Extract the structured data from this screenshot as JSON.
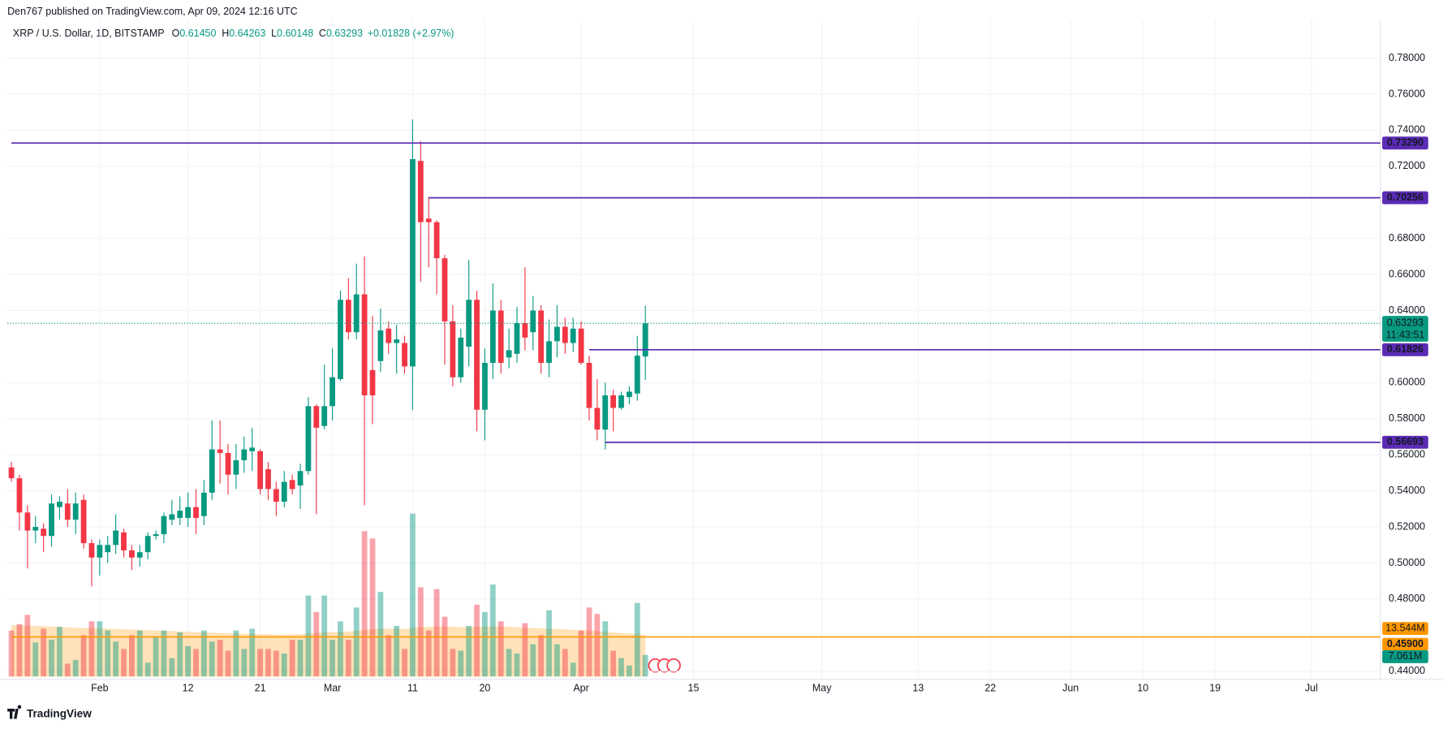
{
  "header": {
    "publisher": "Den767 published on TradingView.com, Apr 09, 2024 12:16 UTC",
    "footer": "TradingView"
  },
  "chart_data": {
    "type": "candlestick",
    "title": "XRP / U.S. Dollar, 1D, BITSTAMP",
    "legend": [
      {
        "key": "O",
        "value": "0.61450"
      },
      {
        "key": "H",
        "value": "0.64263"
      },
      {
        "key": "L",
        "value": "0.60148"
      },
      {
        "key": "C",
        "value": "0.63293"
      }
    ],
    "change": "+0.01828 (+2.97%)",
    "up_color": "#089981",
    "down_color": "#f23645",
    "open": [
      0.553,
      0.547,
      0.528,
      0.518,
      0.519,
      0.515,
      0.531,
      0.533,
      0.524,
      0.535,
      0.511,
      0.503,
      0.506,
      0.51,
      0.517,
      0.507,
      0.503,
      0.506,
      0.515,
      0.516,
      0.524,
      0.525,
      0.525,
      0.531,
      0.526,
      0.539,
      0.563,
      0.561,
      0.549,
      0.557,
      0.562,
      0.562,
      0.552,
      0.541,
      0.534,
      0.546,
      0.543,
      0.551,
      0.587,
      0.576,
      0.587,
      0.602,
      0.646,
      0.628,
      0.649,
      0.607,
      0.612,
      0.63,
      0.622,
      0.622,
      0.609,
      0.723,
      0.691,
      0.689,
      0.669,
      0.634,
      0.603,
      0.62,
      0.646,
      0.585,
      0.611,
      0.64,
      0.614,
      0.616,
      0.633,
      0.628,
      0.64,
      0.611,
      0.623,
      0.631,
      0.622,
      0.63,
      0.611,
      0.586,
      0.574,
      0.593,
      0.586,
      0.592,
      0.594,
      0.6145
    ],
    "high": [
      0.556,
      0.549,
      0.532,
      0.526,
      0.522,
      0.538,
      0.537,
      0.541,
      0.539,
      0.538,
      0.513,
      0.513,
      0.515,
      0.527,
      0.519,
      0.51,
      0.51,
      0.517,
      0.518,
      0.528,
      0.535,
      0.537,
      0.539,
      0.541,
      0.546,
      0.579,
      0.579,
      0.566,
      0.566,
      0.57,
      0.575,
      0.563,
      0.556,
      0.545,
      0.551,
      0.549,
      0.555,
      0.592,
      0.588,
      0.61,
      0.619,
      0.651,
      0.658,
      0.666,
      0.67,
      0.637,
      0.641,
      0.634,
      0.632,
      0.626,
      0.746,
      0.734,
      0.703,
      0.69,
      0.671,
      0.643,
      0.63,
      0.668,
      0.651,
      0.619,
      0.655,
      0.646,
      0.63,
      0.642,
      0.664,
      0.648,
      0.643,
      0.635,
      0.643,
      0.636,
      0.636,
      0.634,
      0.615,
      0.602,
      0.6,
      0.596,
      0.595,
      0.598,
      0.626,
      0.64263
    ],
    "low": [
      0.545,
      0.518,
      0.497,
      0.511,
      0.506,
      0.509,
      0.524,
      0.52,
      0.516,
      0.508,
      0.487,
      0.493,
      0.5,
      0.505,
      0.503,
      0.496,
      0.498,
      0.502,
      0.513,
      0.511,
      0.521,
      0.521,
      0.52,
      0.516,
      0.521,
      0.535,
      0.544,
      0.538,
      0.541,
      0.55,
      0.551,
      0.538,
      0.535,
      0.526,
      0.531,
      0.538,
      0.53,
      0.549,
      0.527,
      0.574,
      0.579,
      0.601,
      0.624,
      0.624,
      0.532,
      0.577,
      0.606,
      0.616,
      0.605,
      0.605,
      0.585,
      0.656,
      0.664,
      0.649,
      0.61,
      0.598,
      0.6,
      0.609,
      0.573,
      0.568,
      0.602,
      0.605,
      0.608,
      0.611,
      0.618,
      0.618,
      0.605,
      0.603,
      0.614,
      0.616,
      0.617,
      0.61,
      0.579,
      0.568,
      0.563,
      0.573,
      0.585,
      0.588,
      0.59,
      0.60148
    ],
    "close": [
      0.547,
      0.528,
      0.518,
      0.52,
      0.515,
      0.533,
      0.534,
      0.524,
      0.533,
      0.511,
      0.503,
      0.51,
      0.51,
      0.518,
      0.507,
      0.503,
      0.506,
      0.515,
      0.516,
      0.526,
      0.527,
      0.529,
      0.531,
      0.525,
      0.539,
      0.563,
      0.561,
      0.549,
      0.557,
      0.563,
      0.564,
      0.541,
      0.541,
      0.534,
      0.545,
      0.541,
      0.551,
      0.587,
      0.575,
      0.587,
      0.603,
      0.646,
      0.628,
      0.649,
      0.593,
      0.593,
      0.629,
      0.622,
      0.624,
      0.609,
      0.724,
      0.689,
      0.689,
      0.669,
      0.634,
      0.603,
      0.625,
      0.646,
      0.585,
      0.611,
      0.64,
      0.611,
      0.618,
      0.633,
      0.625,
      0.64,
      0.611,
      0.623,
      0.631,
      0.622,
      0.63,
      0.611,
      0.586,
      0.574,
      0.593,
      0.586,
      0.593,
      0.595,
      0.615,
      0.63293
    ],
    "volume": [
      15,
      17.1,
      20.1,
      11.1,
      15.6,
      12,
      16.2,
      4.2,
      5.4,
      13.5,
      18,
      18,
      15,
      11.4,
      9,
      13.5,
      15,
      4.5,
      12.9,
      15,
      6,
      14.4,
      9.9,
      9,
      15,
      11.4,
      12,
      8.4,
      15,
      9,
      15.6,
      9,
      9,
      8.4,
      7.5,
      12,
      12,
      26.4,
      21,
      26.4,
      12,
      18,
      12,
      22.5,
      47.4,
      45,
      27.6,
      13.5,
      16.5,
      9,
      53.1,
      29.1,
      15,
      28.5,
      19.5,
      9,
      8.4,
      16.5,
      23.4,
      21,
      30,
      18,
      9,
      7.5,
      17.4,
      10.5,
      13.5,
      21.6,
      10.5,
      9,
      4.5,
      15,
      22.5,
      20.4,
      18,
      8.4,
      6,
      3.6,
      24,
      7.061
    ],
    "volume_label": "7.061M",
    "volume_ma": [
      16.8,
      16.7,
      16.6,
      16.5,
      16.4,
      16.3,
      16.2,
      16.0,
      15.9,
      15.8,
      15.8,
      15.7,
      15.6,
      15.5,
      15.4,
      15.3,
      15.2,
      15.1,
      15.0,
      14.9,
      14.8,
      14.7,
      14.6,
      14.5,
      14.4,
      14.3,
      14.2,
      14.1,
      14.0,
      13.9,
      13.9,
      13.8,
      13.8,
      13.7,
      13.7,
      13.7,
      13.8,
      14.0,
      14.2,
      14.4,
      14.5,
      14.6,
      14.7,
      14.9,
      15.2,
      15.5,
      15.6,
      15.6,
      15.6,
      15.5,
      15.9,
      16.1,
      16.2,
      16.3,
      16.3,
      16.2,
      16.1,
      16.1,
      16.2,
      16.2,
      16.3,
      16.3,
      16.2,
      16.0,
      15.9,
      15.8,
      15.7,
      15.6,
      15.5,
      15.4,
      15.2,
      15.1,
      15.0,
      14.8,
      14.6,
      14.4,
      14.2,
      14.0,
      13.8,
      13.544
    ],
    "volume_ma_label": "13.544M",
    "levels": [
      {
        "value": 0.7329,
        "label": "0.73290",
        "start": 0,
        "color": "#5b2bb5"
      },
      {
        "value": 0.70256,
        "label": "0.70256",
        "start": 52,
        "color": "#5b2bb5"
      },
      {
        "value": 0.61826,
        "label": "0.61826",
        "start": 72,
        "color": "#5b2bb5"
      },
      {
        "value": 0.56693,
        "label": "0.56693",
        "start": 74,
        "color": "#5b2bb5"
      },
      {
        "value": 0.459,
        "label": "0.45900",
        "start": 0,
        "color": "#ff9800"
      }
    ],
    "last_price": {
      "value": 0.63293,
      "label": "0.63293",
      "countdown": "11:43:51"
    },
    "ylim": [
      0.4355,
      0.801
    ],
    "yticks": [
      {
        "value": 0.78,
        "label": "0.78000"
      },
      {
        "value": 0.76,
        "label": "0.76000"
      },
      {
        "value": 0.74,
        "label": "0.74000"
      },
      {
        "value": 0.72,
        "label": "0.72000"
      },
      {
        "value": 0.68,
        "label": "0.68000"
      },
      {
        "value": 0.66,
        "label": "0.66000"
      },
      {
        "value": 0.64,
        "label": "0.64000"
      },
      {
        "value": 0.6,
        "label": "0.60000"
      },
      {
        "value": 0.58,
        "label": "0.58000"
      },
      {
        "value": 0.56,
        "label": "0.56000"
      },
      {
        "value": 0.54,
        "label": "0.54000"
      },
      {
        "value": 0.52,
        "label": "0.52000"
      },
      {
        "value": 0.5,
        "label": "0.50000"
      },
      {
        "value": 0.48,
        "label": "0.48000"
      },
      {
        "value": 0.44,
        "label": "0.44000"
      }
    ],
    "xlim": [
      -0.5,
      170.6
    ],
    "xticks": [
      {
        "value": 11,
        "label": "Feb"
      },
      {
        "value": 22,
        "label": "12"
      },
      {
        "value": 31,
        "label": "21"
      },
      {
        "value": 40,
        "label": "Mar"
      },
      {
        "value": 50,
        "label": "11"
      },
      {
        "value": 59,
        "label": "20"
      },
      {
        "value": 71,
        "label": "Apr"
      },
      {
        "value": 85,
        "label": "15"
      },
      {
        "value": 101,
        "label": "May"
      },
      {
        "value": 113,
        "label": "13"
      },
      {
        "value": 122,
        "label": "22"
      },
      {
        "value": 132,
        "label": "Jun"
      },
      {
        "value": 141,
        "label": "10"
      },
      {
        "value": 150,
        "label": "19"
      },
      {
        "value": 162,
        "label": "Jul"
      }
    ],
    "grid": true
  }
}
